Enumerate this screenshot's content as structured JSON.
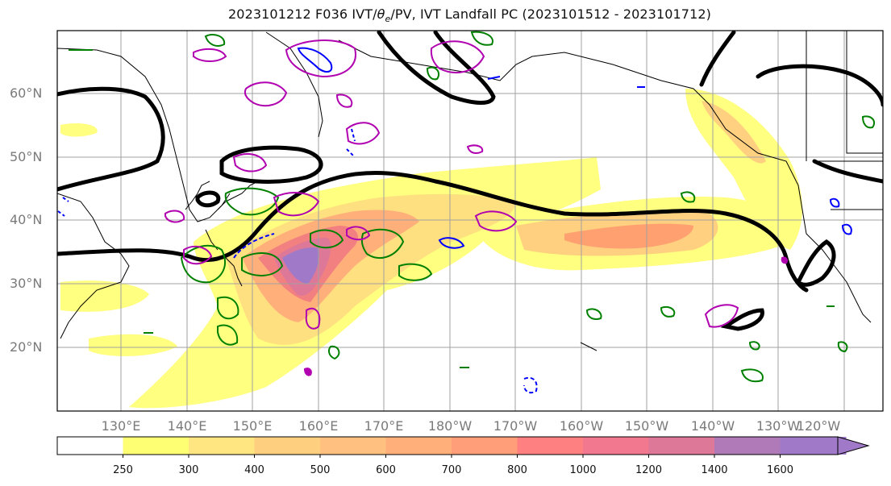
{
  "title": "2023101212 F036 IVT/θe/PV, IVT Landfall PC (2023101512 - 2023101712)",
  "title_parts": {
    "prefix": "2023101212 F036 IVT/",
    "theta": "θ",
    "subscript": "e",
    "suffix": "/PV, IVT Landfall PC (2023101512 - 2023101712)"
  },
  "lat_labels": [
    "60°N",
    "50°N",
    "40°N",
    "30°N",
    "20°N"
  ],
  "lon_labels": [
    "130°E",
    "140°E",
    "150°E",
    "160°E",
    "170°E",
    "180°W",
    "170°W",
    "160°W",
    "150°W",
    "140°W",
    "130°W",
    "120°W"
  ],
  "colorbar": {
    "ticks": [
      "250",
      "300",
      "400",
      "500",
      "600",
      "700",
      "800",
      "1000",
      "1200",
      "1400",
      "1600"
    ],
    "colors": [
      "#ffffff",
      "#ffff73",
      "#ffe680",
      "#ffcf80",
      "#ffc080",
      "#ffb07a",
      "#ff9e78",
      "#ff8080",
      "#f27890",
      "#dd7898",
      "#b07ab8",
      "#a07ac8"
    ]
  },
  "legend_colors": {
    "ivt_fill_low": "#ffff73",
    "ivt_fill_high": "#a07ac8",
    "black_contour": "#000000",
    "green_contour": "#008000",
    "magenta_contour": "#b000b0",
    "blue_contour": "#0000ff"
  }
}
